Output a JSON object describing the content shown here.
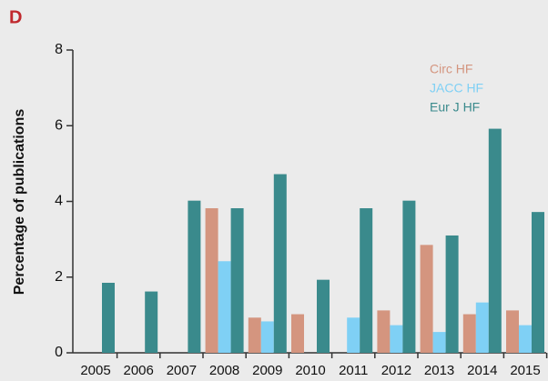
{
  "chart_data": {
    "type": "bar",
    "panel_label": "D",
    "ylabel": "Percentage of publications",
    "categories": [
      "2005",
      "2006",
      "2007",
      "2008",
      "2009",
      "2010",
      "2011",
      "2012",
      "2013",
      "2014",
      "2015"
    ],
    "series": [
      {
        "name": "Circ HF",
        "color": "#d4957f",
        "values": [
          0,
          0,
          0,
          3.82,
          0.93,
          1.02,
          0,
          1.12,
          2.85,
          1.02,
          1.12
        ]
      },
      {
        "name": "JACC HF",
        "color": "#7fd0f5",
        "values": [
          0,
          0,
          0,
          2.42,
          0.83,
          0,
          0.93,
          0.73,
          0.55,
          1.33,
          0.73
        ]
      },
      {
        "name": "Eur J HF",
        "color": "#3a8a8c",
        "values": [
          1.85,
          1.62,
          4.02,
          3.82,
          4.72,
          1.93,
          3.82,
          4.02,
          3.1,
          5.92,
          3.72
        ]
      }
    ],
    "ylim": [
      0,
      8
    ],
    "yticks": [
      0,
      2,
      4,
      6,
      8
    ],
    "legend": "upper right"
  }
}
